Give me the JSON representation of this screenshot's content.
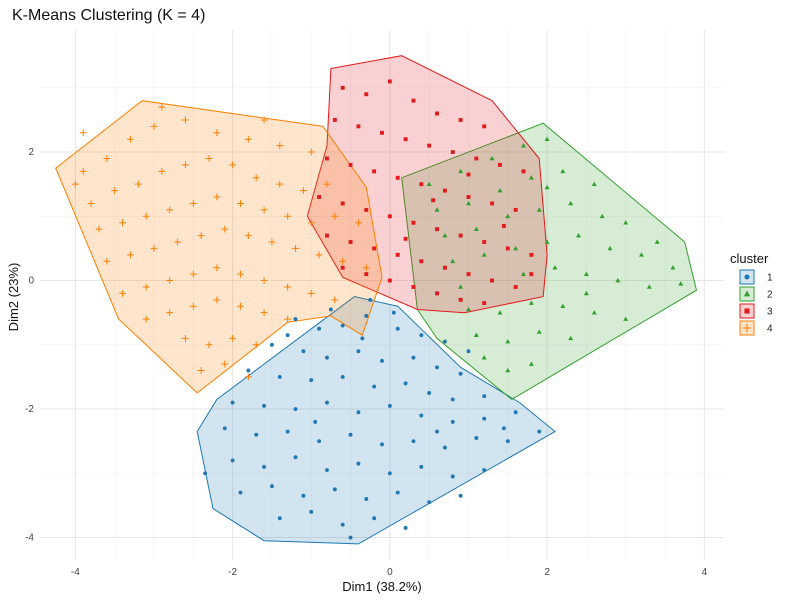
{
  "chart_data": {
    "type": "scatter",
    "title": "K-Means Clustering (K = 4)",
    "xlabel": "Dim1 (38.2%)",
    "ylabel": "Dim2 (23%)",
    "xlim": [
      -4.45,
      4.25
    ],
    "ylim": [
      -4.35,
      3.9
    ],
    "x_ticks": [
      -4,
      -2,
      0,
      2,
      4
    ],
    "y_ticks": [
      -4,
      -2,
      0,
      2
    ],
    "grid": true,
    "legend": {
      "title": "cluster",
      "position": "right"
    },
    "series": [
      {
        "name": "1",
        "shape": "circle",
        "color": "#1f78b4",
        "hull": [
          [
            -2.45,
            -2.35
          ],
          [
            -2.25,
            -3.55
          ],
          [
            -1.6,
            -4.05
          ],
          [
            -0.4,
            -4.1
          ],
          [
            2.1,
            -2.35
          ],
          [
            1.65,
            -1.9
          ],
          [
            0.9,
            -1.35
          ],
          [
            0.1,
            -0.4
          ],
          [
            -0.45,
            -0.25
          ],
          [
            -2.2,
            -1.85
          ]
        ],
        "points": [
          [
            -1.2,
            -0.6
          ],
          [
            -0.9,
            -0.75
          ],
          [
            -0.6,
            -0.7
          ],
          [
            -0.3,
            -0.55
          ],
          [
            0.1,
            -0.75
          ],
          [
            0.4,
            -0.85
          ],
          [
            0.7,
            -0.95
          ],
          [
            -1.5,
            -1.0
          ],
          [
            -1.1,
            -1.1
          ],
          [
            -0.8,
            -1.2
          ],
          [
            -0.4,
            -1.1
          ],
          [
            -0.1,
            -1.25
          ],
          [
            0.3,
            -1.2
          ],
          [
            0.6,
            -1.35
          ],
          [
            0.9,
            -1.45
          ],
          [
            -1.8,
            -1.4
          ],
          [
            -1.4,
            -1.5
          ],
          [
            -1.0,
            -1.55
          ],
          [
            -0.6,
            -1.5
          ],
          [
            -0.2,
            -1.65
          ],
          [
            0.2,
            -1.6
          ],
          [
            0.5,
            -1.75
          ],
          [
            0.8,
            -1.85
          ],
          [
            1.2,
            -1.8
          ],
          [
            -2.0,
            -1.9
          ],
          [
            -1.6,
            -1.95
          ],
          [
            -1.2,
            -2.0
          ],
          [
            -0.8,
            -1.9
          ],
          [
            -0.4,
            -2.05
          ],
          [
            0.0,
            -1.95
          ],
          [
            0.4,
            -2.1
          ],
          [
            0.8,
            -2.2
          ],
          [
            1.2,
            -2.15
          ],
          [
            1.6,
            -2.05
          ],
          [
            -2.1,
            -2.3
          ],
          [
            -1.7,
            -2.4
          ],
          [
            -1.3,
            -2.35
          ],
          [
            -0.9,
            -2.5
          ],
          [
            -0.5,
            -2.4
          ],
          [
            -0.1,
            -2.55
          ],
          [
            0.3,
            -2.5
          ],
          [
            0.7,
            -2.6
          ],
          [
            1.1,
            -2.45
          ],
          [
            1.5,
            -2.5
          ],
          [
            1.9,
            -2.35
          ],
          [
            -2.0,
            -2.8
          ],
          [
            -1.6,
            -2.9
          ],
          [
            -1.2,
            -2.75
          ],
          [
            -0.8,
            -2.95
          ],
          [
            -0.4,
            -2.85
          ],
          [
            0.0,
            -3.0
          ],
          [
            0.4,
            -2.9
          ],
          [
            0.8,
            -3.05
          ],
          [
            1.2,
            -2.95
          ],
          [
            -1.9,
            -3.3
          ],
          [
            -1.5,
            -3.2
          ],
          [
            -1.1,
            -3.35
          ],
          [
            -0.7,
            -3.25
          ],
          [
            -0.3,
            -3.4
          ],
          [
            0.1,
            -3.3
          ],
          [
            0.5,
            -3.45
          ],
          [
            0.9,
            -3.35
          ],
          [
            -1.4,
            -3.7
          ],
          [
            -1.0,
            -3.6
          ],
          [
            -0.6,
            -3.8
          ],
          [
            -0.2,
            -3.7
          ],
          [
            0.2,
            -3.85
          ],
          [
            -0.5,
            -4.0
          ],
          [
            -2.35,
            -3.0
          ],
          [
            -0.25,
            -0.3
          ],
          [
            0.05,
            -0.5
          ],
          [
            -0.75,
            -0.45
          ],
          [
            -1.3,
            -0.85
          ],
          [
            -0.35,
            -0.9
          ],
          [
            1.0,
            -1.1
          ],
          [
            1.45,
            -2.3
          ],
          [
            -0.95,
            -2.2
          ],
          [
            0.6,
            -2.35
          ]
        ]
      },
      {
        "name": "2",
        "shape": "triangle",
        "color": "#33a02c",
        "hull": [
          [
            0.15,
            1.6
          ],
          [
            1.95,
            2.45
          ],
          [
            3.75,
            0.6
          ],
          [
            3.9,
            -0.15
          ],
          [
            1.55,
            -1.85
          ],
          [
            0.6,
            -0.9
          ],
          [
            0.35,
            -0.45
          ]
        ],
        "points": [
          [
            0.5,
            1.5
          ],
          [
            0.9,
            1.7
          ],
          [
            1.3,
            1.9
          ],
          [
            1.7,
            2.1
          ],
          [
            2.0,
            2.2
          ],
          [
            0.6,
            1.1
          ],
          [
            1.0,
            1.2
          ],
          [
            1.4,
            1.4
          ],
          [
            1.8,
            1.6
          ],
          [
            2.2,
            1.7
          ],
          [
            2.6,
            1.5
          ],
          [
            0.7,
            0.7
          ],
          [
            1.1,
            0.8
          ],
          [
            1.5,
            1.0
          ],
          [
            1.9,
            1.1
          ],
          [
            2.3,
            1.2
          ],
          [
            2.7,
            1.0
          ],
          [
            3.0,
            0.9
          ],
          [
            0.8,
            0.3
          ],
          [
            1.2,
            0.4
          ],
          [
            1.6,
            0.5
          ],
          [
            2.0,
            0.6
          ],
          [
            2.4,
            0.7
          ],
          [
            2.8,
            0.5
          ],
          [
            3.2,
            0.4
          ],
          [
            3.6,
            0.2
          ],
          [
            0.9,
            -0.1
          ],
          [
            1.3,
            0.0
          ],
          [
            1.7,
            0.1
          ],
          [
            2.1,
            0.2
          ],
          [
            2.5,
            0.1
          ],
          [
            2.9,
            0.0
          ],
          [
            3.3,
            -0.1
          ],
          [
            3.7,
            -0.05
          ],
          [
            1.0,
            -0.45
          ],
          [
            1.4,
            -0.5
          ],
          [
            1.8,
            -0.35
          ],
          [
            2.2,
            -0.4
          ],
          [
            2.6,
            -0.5
          ],
          [
            3.0,
            -0.6
          ],
          [
            1.1,
            -0.85
          ],
          [
            1.5,
            -0.95
          ],
          [
            1.9,
            -0.8
          ],
          [
            2.3,
            -0.9
          ],
          [
            1.5,
            -1.4
          ],
          [
            1.8,
            -1.3
          ],
          [
            1.2,
            -1.2
          ],
          [
            2.5,
            -0.2
          ],
          [
            3.4,
            0.6
          ],
          [
            2.0,
            1.45
          ]
        ]
      },
      {
        "name": "3",
        "shape": "square",
        "color": "#e31a1c",
        "hull": [
          [
            -0.75,
            3.3
          ],
          [
            0.15,
            3.5
          ],
          [
            1.3,
            2.8
          ],
          [
            1.9,
            1.9
          ],
          [
            2.0,
            0.4
          ],
          [
            1.95,
            -0.25
          ],
          [
            0.95,
            -0.5
          ],
          [
            0.35,
            -0.45
          ],
          [
            -0.6,
            0.05
          ],
          [
            -1.05,
            1.0
          ],
          [
            -0.8,
            2.1
          ]
        ],
        "points": [
          [
            -0.6,
            3.0
          ],
          [
            -0.3,
            2.9
          ],
          [
            0.0,
            3.1
          ],
          [
            0.3,
            2.8
          ],
          [
            0.6,
            2.6
          ],
          [
            0.9,
            2.5
          ],
          [
            1.2,
            2.4
          ],
          [
            -0.7,
            2.5
          ],
          [
            -0.4,
            2.4
          ],
          [
            -0.1,
            2.3
          ],
          [
            0.2,
            2.2
          ],
          [
            0.5,
            2.1
          ],
          [
            0.8,
            2.0
          ],
          [
            1.1,
            1.9
          ],
          [
            1.4,
            1.8
          ],
          [
            1.7,
            1.7
          ],
          [
            -0.8,
            1.9
          ],
          [
            -0.5,
            1.8
          ],
          [
            -0.2,
            1.7
          ],
          [
            0.1,
            1.6
          ],
          [
            0.4,
            1.5
          ],
          [
            0.7,
            1.4
          ],
          [
            1.0,
            1.3
          ],
          [
            1.3,
            1.2
          ],
          [
            1.6,
            1.1
          ],
          [
            -0.9,
            1.3
          ],
          [
            -0.6,
            1.2
          ],
          [
            -0.3,
            1.1
          ],
          [
            0.0,
            1.0
          ],
          [
            0.3,
            0.9
          ],
          [
            0.6,
            0.8
          ],
          [
            0.9,
            0.7
          ],
          [
            1.2,
            0.6
          ],
          [
            1.5,
            0.5
          ],
          [
            1.8,
            0.4
          ],
          [
            -0.8,
            0.7
          ],
          [
            -0.5,
            0.6
          ],
          [
            -0.2,
            0.5
          ],
          [
            0.1,
            0.4
          ],
          [
            0.4,
            0.3
          ],
          [
            0.7,
            0.2
          ],
          [
            1.0,
            0.1
          ],
          [
            1.3,
            0.0
          ],
          [
            1.6,
            -0.1
          ],
          [
            -0.6,
            0.2
          ],
          [
            -0.3,
            0.1
          ],
          [
            0.0,
            0.0
          ],
          [
            0.3,
            -0.1
          ],
          [
            0.6,
            -0.2
          ],
          [
            0.9,
            -0.3
          ],
          [
            1.2,
            -0.35
          ],
          [
            1.8,
            0.1
          ],
          [
            1.0,
            1.65
          ],
          [
            0.55,
            1.25
          ],
          [
            0.2,
            0.65
          ],
          [
            1.45,
            0.85
          ]
        ]
      },
      {
        "name": "4",
        "shape": "plus",
        "color": "#ff7f00",
        "hull": [
          [
            -4.25,
            1.75
          ],
          [
            -3.15,
            2.8
          ],
          [
            -0.85,
            2.4
          ],
          [
            -0.3,
            1.45
          ],
          [
            -0.1,
            0.05
          ],
          [
            -0.35,
            -0.85
          ],
          [
            -0.75,
            -0.55
          ],
          [
            -1.3,
            -0.65
          ],
          [
            -2.45,
            -1.75
          ],
          [
            -3.45,
            -0.6
          ]
        ],
        "points": [
          [
            -3.9,
            1.7
          ],
          [
            -3.6,
            1.9
          ],
          [
            -3.3,
            2.2
          ],
          [
            -3.0,
            2.4
          ],
          [
            -2.6,
            2.5
          ],
          [
            -2.2,
            2.3
          ],
          [
            -1.8,
            2.2
          ],
          [
            -1.4,
            2.1
          ],
          [
            -1.0,
            2.0
          ],
          [
            -3.8,
            1.2
          ],
          [
            -3.5,
            1.4
          ],
          [
            -3.2,
            1.5
          ],
          [
            -2.9,
            1.7
          ],
          [
            -2.6,
            1.8
          ],
          [
            -2.3,
            1.9
          ],
          [
            -2.0,
            1.8
          ],
          [
            -1.7,
            1.6
          ],
          [
            -1.4,
            1.5
          ],
          [
            -1.1,
            1.4
          ],
          [
            -0.8,
            1.5
          ],
          [
            -3.7,
            0.8
          ],
          [
            -3.4,
            0.9
          ],
          [
            -3.1,
            1.0
          ],
          [
            -2.8,
            1.1
          ],
          [
            -2.5,
            1.2
          ],
          [
            -2.2,
            1.3
          ],
          [
            -1.9,
            1.2
          ],
          [
            -1.6,
            1.1
          ],
          [
            -1.3,
            1.0
          ],
          [
            -1.0,
            0.9
          ],
          [
            -0.7,
            1.0
          ],
          [
            -0.4,
            0.9
          ],
          [
            -3.6,
            0.3
          ],
          [
            -3.3,
            0.4
          ],
          [
            -3.0,
            0.5
          ],
          [
            -2.7,
            0.6
          ],
          [
            -2.4,
            0.7
          ],
          [
            -2.1,
            0.8
          ],
          [
            -1.8,
            0.7
          ],
          [
            -1.5,
            0.6
          ],
          [
            -1.2,
            0.5
          ],
          [
            -0.9,
            0.4
          ],
          [
            -0.6,
            0.3
          ],
          [
            -0.3,
            0.2
          ],
          [
            -3.4,
            -0.2
          ],
          [
            -3.1,
            -0.1
          ],
          [
            -2.8,
            0.0
          ],
          [
            -2.5,
            0.1
          ],
          [
            -2.2,
            0.2
          ],
          [
            -1.9,
            0.1
          ],
          [
            -1.6,
            0.0
          ],
          [
            -1.3,
            -0.1
          ],
          [
            -1.0,
            -0.2
          ],
          [
            -0.7,
            -0.3
          ],
          [
            -3.1,
            -0.6
          ],
          [
            -2.8,
            -0.5
          ],
          [
            -2.5,
            -0.4
          ],
          [
            -2.2,
            -0.3
          ],
          [
            -1.9,
            -0.4
          ],
          [
            -1.6,
            -0.5
          ],
          [
            -1.3,
            -0.6
          ],
          [
            -2.6,
            -0.9
          ],
          [
            -2.3,
            -1.0
          ],
          [
            -2.0,
            -0.9
          ],
          [
            -1.7,
            -1.0
          ],
          [
            -2.4,
            -1.4
          ],
          [
            -2.1,
            -1.3
          ],
          [
            -1.8,
            -1.5
          ],
          [
            -3.9,
            2.3
          ],
          [
            -2.9,
            2.7
          ],
          [
            -1.6,
            2.5
          ],
          [
            -4.0,
            1.5
          ]
        ]
      }
    ]
  }
}
